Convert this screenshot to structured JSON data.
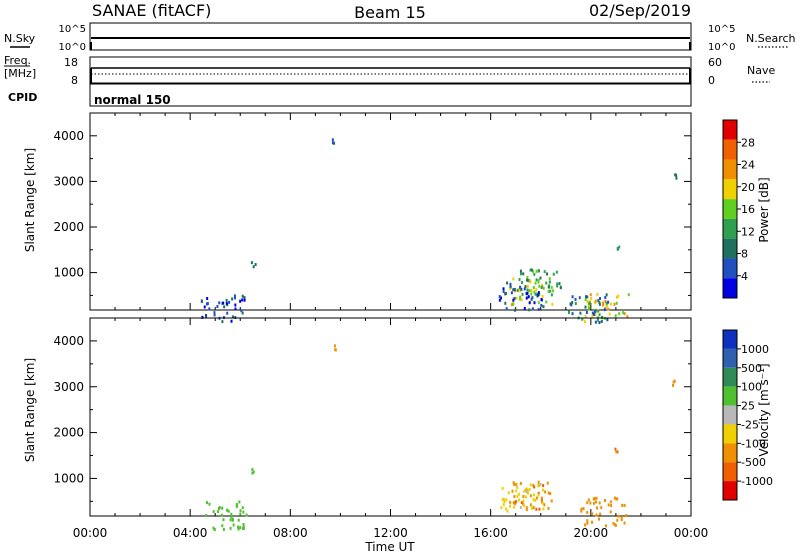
{
  "header": {
    "station": "SANAE (fitACF)",
    "beam": "Beam 15",
    "date": "02/Sep/2019"
  },
  "panels": {
    "nsky_label": "N.Sky",
    "nsky_ticks": [
      "10^5",
      "10^0"
    ],
    "nsearch_label": "N.Search",
    "nsearch_ticks": [
      "10^5",
      "10^0"
    ],
    "freq_label_line1": "Freq.",
    "freq_label_line2": "[MHz]",
    "freq_ticks": [
      "18",
      "8"
    ],
    "nave_label": "Nave",
    "nave_ticks": [
      "60",
      "0"
    ],
    "cpid_label": "CPID",
    "cpid_value": "normal 150"
  },
  "x_axis": {
    "label": "Time UT",
    "ticks": [
      "00:00",
      "04:00",
      "08:00",
      "12:00",
      "16:00",
      "20:00",
      "00:00"
    ]
  },
  "power_panel": {
    "ylabel": "Slant Range [km]",
    "yticks": [
      "4000",
      "3000",
      "2000",
      "1000"
    ],
    "cbar_label": "Power [dB]",
    "cbar_ticks": [
      "28",
      "24",
      "20",
      "16",
      "12",
      "8",
      "4"
    ]
  },
  "velocity_panel": {
    "ylabel": "Slant Range [km]",
    "yticks": [
      "4000",
      "3000",
      "2000",
      "1000"
    ],
    "cbar_label": "Velocity [m s⁻¹]",
    "cbar_ticks": [
      "1000",
      "500",
      "100",
      "25",
      "-25",
      "-100",
      "-500",
      "-1000"
    ]
  },
  "colors": {
    "power_scale": [
      "#0000e0",
      "#2050c0",
      "#207060",
      "#2ea050",
      "#60d020",
      "#f0d000",
      "#f09000",
      "#f06000",
      "#e00000"
    ],
    "velocity_scale": [
      "#1030c0",
      "#3060b0",
      "#2f8a55",
      "#50c030",
      "#b8b8b8",
      "#f0d000",
      "#f09000",
      "#f06000",
      "#e00000"
    ]
  },
  "chart_data": [
    {
      "type": "scatter",
      "title": "Power",
      "xlabel": "Time UT",
      "ylabel": "Slant Range [km]",
      "xlim": [
        0,
        24
      ],
      "ylim": [
        180,
        4500
      ],
      "x_unit": "hours UT",
      "clusters": [
        {
          "x": 17.6,
          "y": 600,
          "value": 20
        },
        {
          "x": 17.9,
          "y": 800,
          "value": 14
        },
        {
          "x": 17.2,
          "y": 500,
          "value": 6
        },
        {
          "x": 20.6,
          "y": 250,
          "value": 22
        },
        {
          "x": 19.8,
          "y": 240,
          "value": 10
        },
        {
          "x": 21.1,
          "y": 1600,
          "value": 12
        },
        {
          "x": 5.3,
          "y": 230,
          "value": 6
        },
        {
          "x": 9.7,
          "y": 3900,
          "value": 8
        },
        {
          "x": 6.5,
          "y": 1200,
          "value": 12
        },
        {
          "x": 23.3,
          "y": 3100,
          "value": 6
        }
      ]
    },
    {
      "type": "scatter",
      "title": "Velocity",
      "xlabel": "Time UT",
      "ylabel": "Slant Range [km]",
      "xlim": [
        0,
        24
      ],
      "ylim": [
        180,
        4500
      ],
      "x_unit": "hours UT",
      "clusters": [
        {
          "x": 17.6,
          "y": 650,
          "value": -400
        },
        {
          "x": 17.2,
          "y": 600,
          "value": -40
        },
        {
          "x": 20.5,
          "y": 300,
          "value": -300
        },
        {
          "x": 19.6,
          "y": 400,
          "value": -150
        },
        {
          "x": 21.0,
          "y": 1600,
          "value": -600
        },
        {
          "x": 5.4,
          "y": 220,
          "value": 50
        },
        {
          "x": 9.7,
          "y": 3880,
          "value": -300
        },
        {
          "x": 6.5,
          "y": 1190,
          "value": 60
        },
        {
          "x": 23.3,
          "y": 3100,
          "value": -250
        }
      ]
    }
  ]
}
